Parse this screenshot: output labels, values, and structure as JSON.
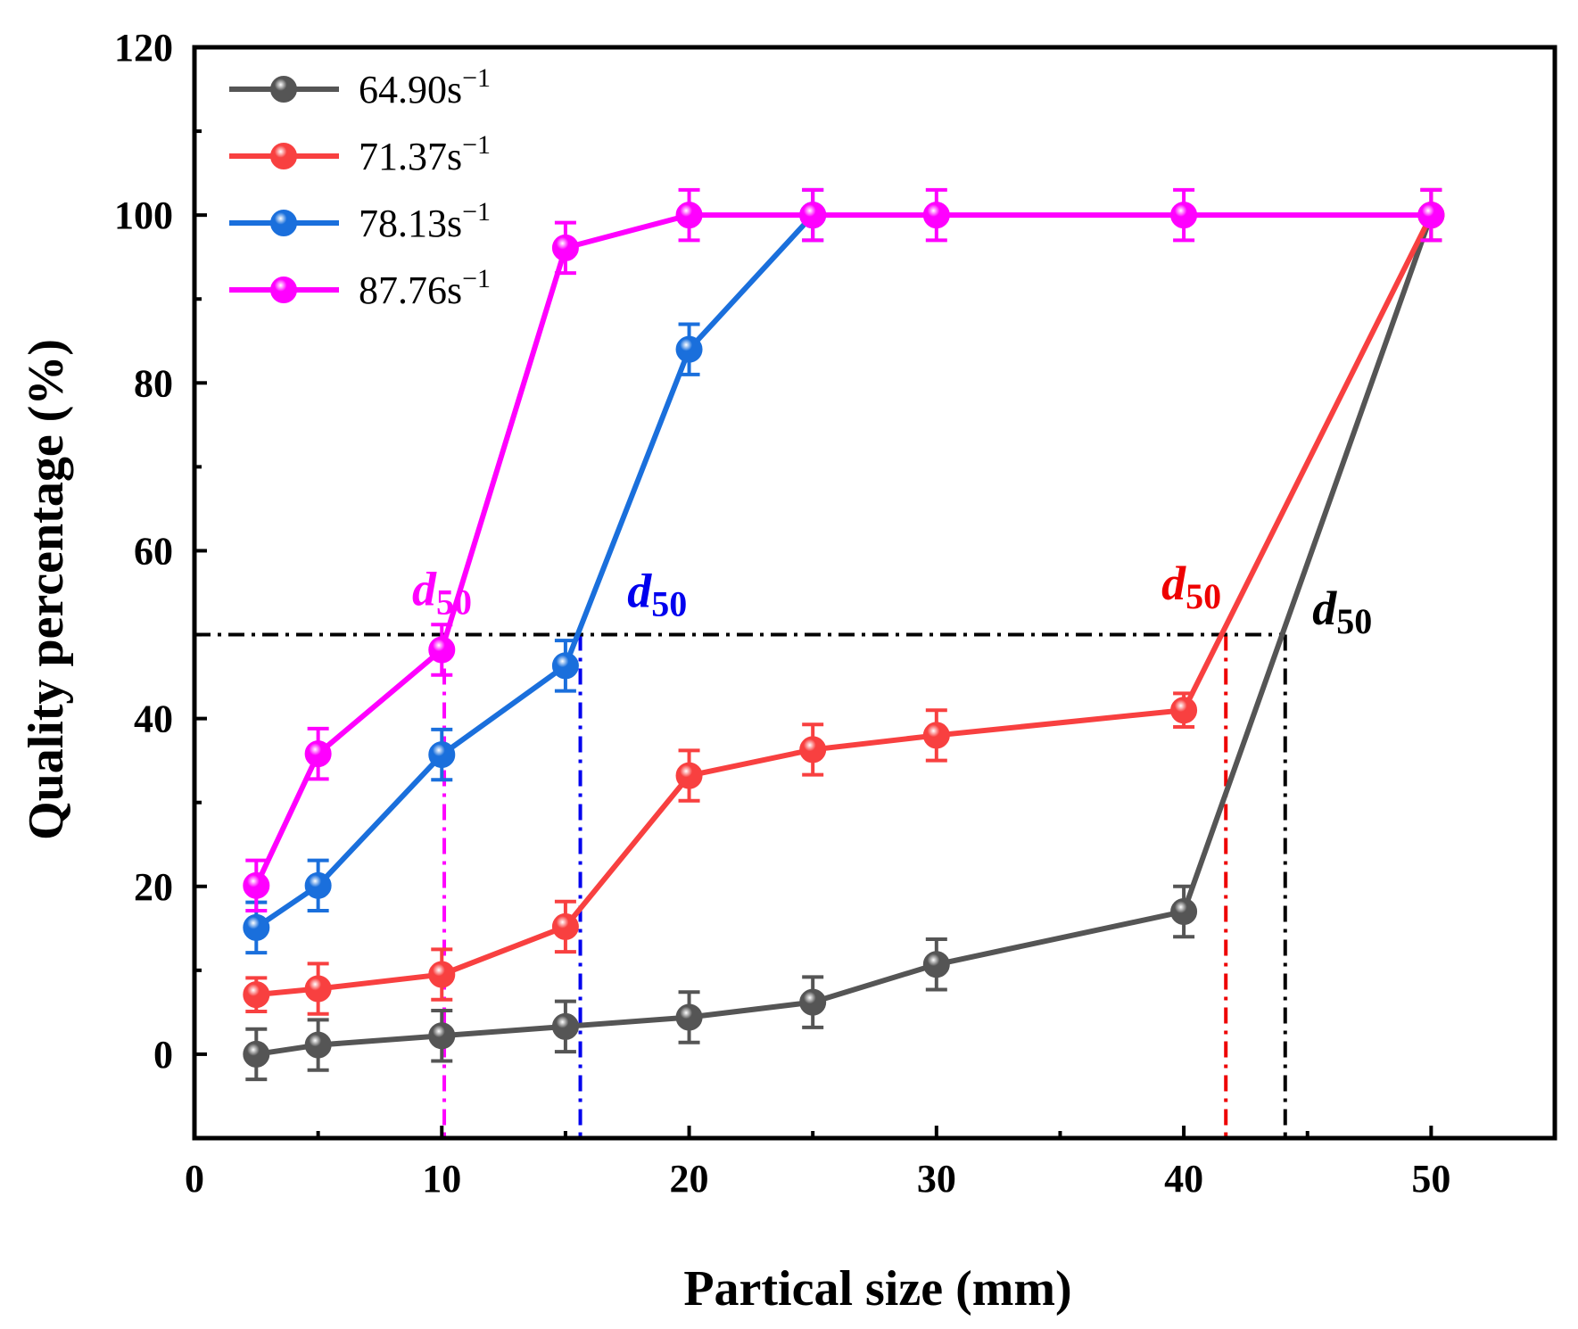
{
  "chart_data": {
    "type": "line",
    "xlabel": "Partical size (mm)",
    "ylabel": "Quality percentage (%)",
    "xlim": [
      0,
      55
    ],
    "ylim": [
      -10,
      120
    ],
    "x_ticks": [
      0,
      10,
      20,
      30,
      40,
      50
    ],
    "y_ticks": [
      0,
      20,
      40,
      60,
      80,
      100,
      120
    ],
    "grid": false,
    "legend_position": "top-left",
    "series": [
      {
        "name_base": "64.90s",
        "name_sup": "−1",
        "color": "#555555",
        "x": [
          2.5,
          5,
          10,
          15,
          20,
          25,
          30,
          40,
          50
        ],
        "y": [
          0,
          1.1,
          2.2,
          3.3,
          4.4,
          6.2,
          10.7,
          17,
          100
        ],
        "err": [
          3,
          3,
          3,
          3,
          3,
          3,
          3,
          3,
          3
        ]
      },
      {
        "name_base": "71.37s",
        "name_sup": "−1",
        "color": "#f84040",
        "x": [
          2.5,
          5,
          10,
          15,
          20,
          25,
          30,
          40,
          50
        ],
        "y": [
          7.1,
          7.8,
          9.5,
          15.2,
          33.2,
          36.3,
          38,
          41,
          100
        ],
        "err": [
          2,
          3,
          3,
          3,
          3,
          3,
          3,
          2,
          3
        ]
      },
      {
        "name_base": "78.13s",
        "name_sup": "−1",
        "color": "#1a6fdc",
        "x": [
          2.5,
          5,
          10,
          15,
          20,
          25
        ],
        "y": [
          15.1,
          20.1,
          35.7,
          46.3,
          84,
          100
        ],
        "err": [
          3,
          3,
          3,
          3,
          3,
          3
        ]
      },
      {
        "name_base": "87.76s",
        "name_sup": "−1",
        "color": "#ff00ff",
        "x": [
          2.5,
          5,
          10,
          15,
          20,
          25,
          30,
          40,
          50
        ],
        "y": [
          20.1,
          35.8,
          48.2,
          96.1,
          100,
          100,
          100,
          100,
          100
        ],
        "err": [
          3,
          3,
          3,
          3,
          3,
          3,
          3,
          3,
          3
        ]
      }
    ],
    "d50_annotations": [
      {
        "base": "d",
        "sub": "50",
        "x": 10.1,
        "color": "#ff00ff",
        "label_x": 8.8,
        "label_y": 53.5
      },
      {
        "base": "d",
        "sub": "50",
        "x": 15.6,
        "color": "#0000ee",
        "label_x": 17.5,
        "label_y": 53.3
      },
      {
        "base": "d",
        "sub": "50",
        "x": 41.7,
        "color": "#ee0000",
        "label_x": 39.1,
        "label_y": 54.2
      },
      {
        "base": "d",
        "sub": "50",
        "x": 44.1,
        "color": "#000000",
        "label_x": 45.2,
        "label_y": 51.2
      }
    ]
  }
}
